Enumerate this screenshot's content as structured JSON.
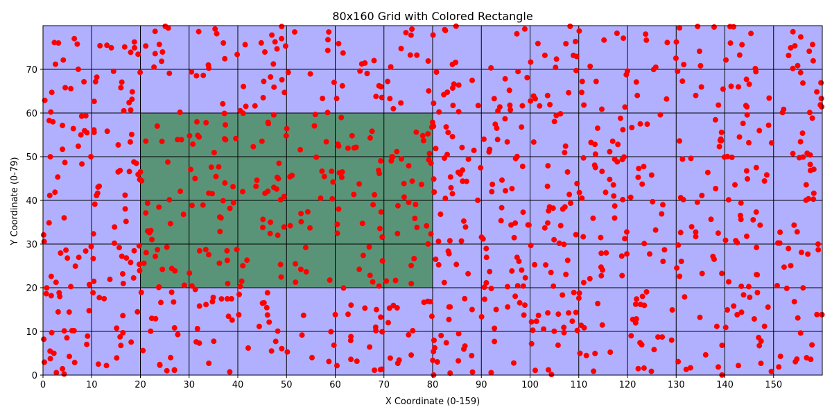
{
  "chart_data": {
    "type": "scatter",
    "title": "80x160 Grid with Colored Rectangle",
    "xlabel": "X Coordinate (0-159)",
    "ylabel": "Y Coordinate (0-79)",
    "xlim": [
      0,
      160
    ],
    "ylim": [
      0,
      80
    ],
    "xticks": [
      0,
      10,
      20,
      30,
      40,
      50,
      60,
      70,
      80,
      90,
      100,
      110,
      120,
      130,
      140,
      150
    ],
    "yticks": [
      0,
      10,
      20,
      30,
      40,
      50,
      60,
      70
    ],
    "grid": true,
    "grid_cell_size": 10,
    "colors": {
      "background": "#b0b0ff",
      "rectangle": "#5a9478",
      "points": "#ff0000",
      "grid": "#000000"
    },
    "rectangle": {
      "x0": 20,
      "x1": 80,
      "y0": 20,
      "y1": 60
    },
    "point_count": 1000,
    "points_note": "Approximately 1000 uniformly scattered red points across the full grid; exact coordinates not individually legible."
  }
}
